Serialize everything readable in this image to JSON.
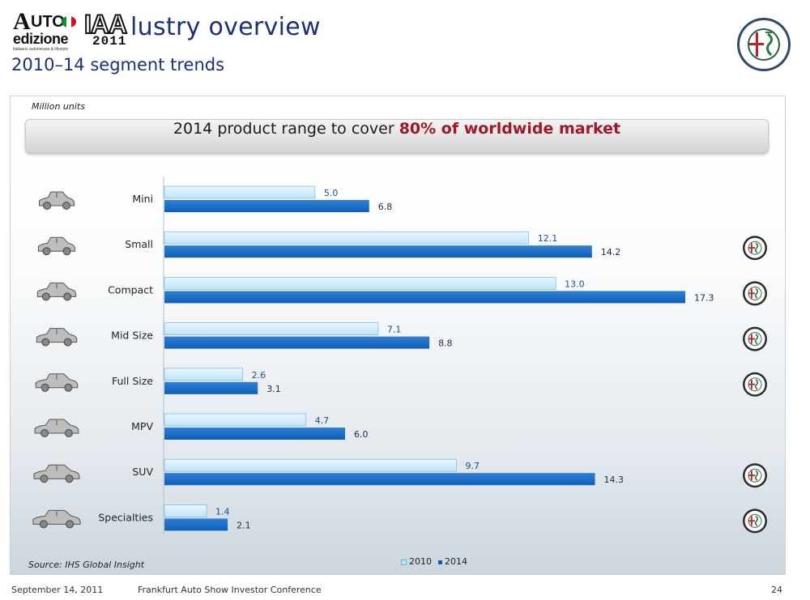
{
  "header": {
    "logo_auto_text_a": "A",
    "logo_auto_text_b": "UTO",
    "logo_auto_text_c": "edizione",
    "logo_auto_tagline": "Italiaans autonieuws & lifestyle",
    "logo_iaa_text": "IAA",
    "logo_iaa_year": "2011",
    "title": "lustry overview",
    "subtitle": "2010–14 segment trends",
    "brand_logo_icon": "alfa-romeo-badge-icon"
  },
  "panel": {
    "units_label": "Million units",
    "banner_prefix": "2014 product range to cover ",
    "banner_highlight": "80% of worldwide market",
    "source": "Source: IHS Global Insight"
  },
  "chart_data": {
    "type": "bar",
    "orientation": "horizontal",
    "categories": [
      "Mini",
      "Small",
      "Compact",
      "Mid Size",
      "Full Size",
      "MPV",
      "SUV",
      "Specialties"
    ],
    "series": [
      {
        "name": "2010",
        "values": [
          5.0,
          12.1,
          13.0,
          7.1,
          2.6,
          4.7,
          9.7,
          1.4
        ],
        "color": "#bfe3f7"
      },
      {
        "name": "2014",
        "values": [
          6.8,
          14.2,
          17.3,
          8.8,
          3.1,
          6.0,
          14.3,
          2.1
        ],
        "color": "#0f5fb8"
      }
    ],
    "value_labels_2010": [
      "5.0",
      "12.1",
      "13.0",
      "7.1",
      "2.6",
      "4.7",
      "9.7",
      "1.4"
    ],
    "value_labels_2014": [
      "6.8",
      "14.2",
      "17.3",
      "8.8",
      "3.1",
      "6.0",
      "14.3",
      "2.1"
    ],
    "covered_by_brand": [
      false,
      true,
      true,
      true,
      true,
      false,
      true,
      true
    ],
    "category_icons": [
      "mini-car-icon",
      "small-car-icon",
      "compact-car-icon",
      "mid-size-car-icon",
      "full-size-car-icon",
      "mpv-car-icon",
      "suv-car-icon",
      "convertible-car-icon"
    ],
    "xlim": [
      0,
      17.3
    ],
    "legend_position": "bottom",
    "grid": false
  },
  "legend": {
    "label_2010": "2010",
    "label_2014": "2014"
  },
  "footer": {
    "date": "September 14, 2011",
    "event": "Frankfurt Auto Show Investor Conference",
    "page_number": "24"
  },
  "colors": {
    "title": "#1c2f7a",
    "highlight": "#a01826",
    "bar_2010": "#bfe3f7",
    "bar_2014": "#0f5fb8",
    "value_label": "#1a4f9a"
  }
}
